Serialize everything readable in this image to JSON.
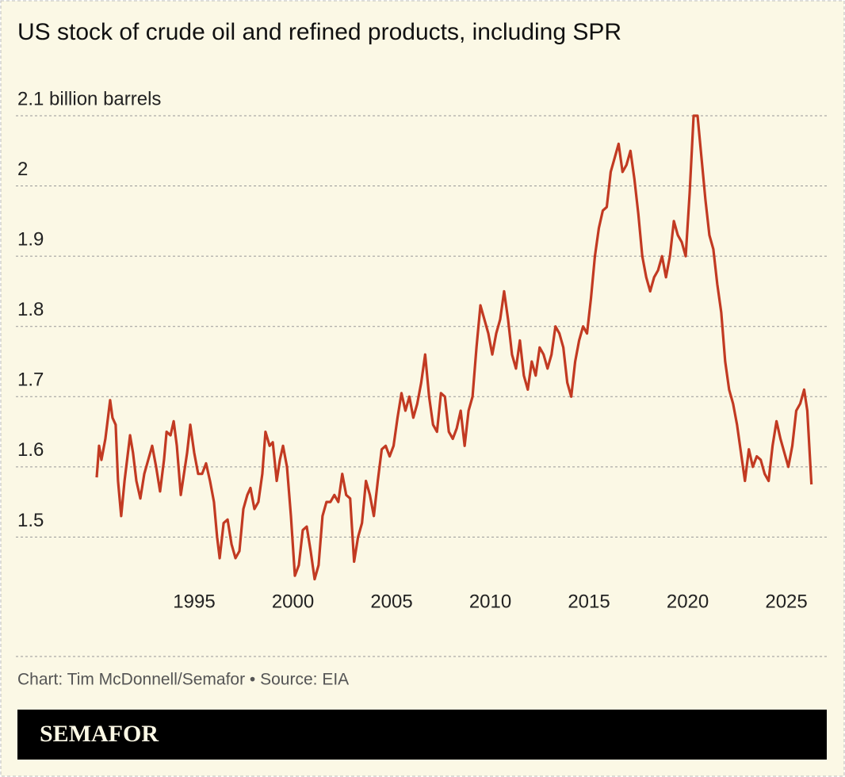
{
  "chart_data": {
    "type": "line",
    "title": "US stock of crude oil and refined products, including SPR",
    "source": "Chart: Tim McDonnell/Semafor • Source: EIA",
    "brand": "SEMAFOR",
    "xlim": [
      1990,
      2026.5
    ],
    "xticks": [
      1995,
      2000,
      2005,
      2010,
      2015,
      2020,
      2025
    ],
    "ylim": [
      1.4,
      2.15
    ],
    "yticks": [
      1.5,
      1.6,
      1.7,
      1.8,
      1.9,
      2,
      {
        "value": 2.1,
        "label": "2.1 billion barrels"
      }
    ],
    "grid": true,
    "x": [
      1990.06,
      1990.18,
      1990.3,
      1990.5,
      1990.74,
      1990.86,
      1991.02,
      1991.14,
      1991.3,
      1991.47,
      1991.6,
      1991.75,
      1991.9,
      1992.07,
      1992.27,
      1992.47,
      1992.67,
      1992.87,
      1993.07,
      1993.27,
      1993.47,
      1993.6,
      1993.8,
      1993.96,
      1994.12,
      1994.32,
      1994.48,
      1994.64,
      1994.8,
      1995.0,
      1995.2,
      1995.4,
      1995.6,
      1995.8,
      1996.0,
      1996.16,
      1996.29,
      1996.49,
      1996.69,
      1996.89,
      1997.09,
      1997.29,
      1997.49,
      1997.69,
      1997.85,
      1998.05,
      1998.25,
      1998.45,
      1998.61,
      1998.82,
      1998.98,
      1999.18,
      1999.34,
      1999.5,
      1999.7,
      1999.9,
      2000.1,
      2000.3,
      2000.5,
      2000.7,
      2000.9,
      2001.1,
      2001.3,
      2001.5,
      2001.7,
      2001.9,
      2002.1,
      2002.3,
      2002.5,
      2002.7,
      2002.9,
      2003.1,
      2003.3,
      2003.5,
      2003.7,
      2003.9,
      2004.1,
      2004.3,
      2004.5,
      2004.7,
      2004.9,
      2005.1,
      2005.3,
      2005.5,
      2005.7,
      2005.9,
      2006.1,
      2006.3,
      2006.5,
      2006.7,
      2006.9,
      2007.1,
      2007.3,
      2007.5,
      2007.7,
      2007.9,
      2008.1,
      2008.3,
      2008.5,
      2008.7,
      2008.9,
      2009.1,
      2009.3,
      2009.5,
      2009.7,
      2009.9,
      2010.1,
      2010.3,
      2010.5,
      2010.7,
      2010.9,
      2011.1,
      2011.3,
      2011.5,
      2011.7,
      2011.9,
      2012.1,
      2012.3,
      2012.5,
      2012.7,
      2012.9,
      2013.1,
      2013.3,
      2013.5,
      2013.7,
      2013.9,
      2014.1,
      2014.3,
      2014.5,
      2014.7,
      2014.9,
      2015.1,
      2015.3,
      2015.5,
      2015.7,
      2015.9,
      2016.1,
      2016.3,
      2016.5,
      2016.7,
      2016.9,
      2017.1,
      2017.3,
      2017.5,
      2017.7,
      2017.9,
      2018.1,
      2018.3,
      2018.5,
      2018.7,
      2018.9,
      2019.1,
      2019.3,
      2019.5,
      2019.7,
      2019.9,
      2020.1,
      2020.3,
      2020.5,
      2020.7,
      2020.9,
      2021.1,
      2021.3,
      2021.5,
      2021.7,
      2021.9,
      2022.1,
      2022.3,
      2022.5,
      2022.7,
      2022.9,
      2023.1,
      2023.3,
      2023.5,
      2023.7,
      2023.9,
      2024.1,
      2024.3,
      2024.5,
      2024.7,
      2024.9,
      2025.1,
      2025.3,
      2025.5,
      2025.7,
      2025.9,
      2026.06,
      2026.27
    ],
    "series": [
      {
        "color": "#c23a22",
        "values": [
          1.585,
          1.63,
          1.61,
          1.64,
          1.695,
          1.67,
          1.66,
          1.58,
          1.53,
          1.58,
          1.61,
          1.645,
          1.62,
          1.58,
          1.555,
          1.59,
          1.61,
          1.63,
          1.6,
          1.565,
          1.61,
          1.65,
          1.645,
          1.665,
          1.63,
          1.56,
          1.59,
          1.62,
          1.66,
          1.62,
          1.59,
          1.59,
          1.605,
          1.58,
          1.55,
          1.5,
          1.47,
          1.52,
          1.525,
          1.49,
          1.47,
          1.48,
          1.54,
          1.56,
          1.57,
          1.54,
          1.55,
          1.59,
          1.65,
          1.63,
          1.635,
          1.58,
          1.61,
          1.63,
          1.6,
          1.53,
          1.445,
          1.46,
          1.51,
          1.515,
          1.48,
          1.44,
          1.46,
          1.53,
          1.55,
          1.55,
          1.56,
          1.55,
          1.59,
          1.56,
          1.555,
          1.465,
          1.5,
          1.52,
          1.58,
          1.56,
          1.53,
          1.58,
          1.625,
          1.63,
          1.615,
          1.63,
          1.67,
          1.705,
          1.68,
          1.7,
          1.67,
          1.69,
          1.72,
          1.76,
          1.7,
          1.66,
          1.65,
          1.705,
          1.7,
          1.65,
          1.64,
          1.655,
          1.68,
          1.63,
          1.68,
          1.7,
          1.77,
          1.83,
          1.81,
          1.79,
          1.76,
          1.79,
          1.81,
          1.85,
          1.81,
          1.76,
          1.74,
          1.78,
          1.73,
          1.71,
          1.75,
          1.73,
          1.77,
          1.76,
          1.74,
          1.76,
          1.8,
          1.79,
          1.77,
          1.72,
          1.7,
          1.75,
          1.78,
          1.8,
          1.79,
          1.84,
          1.9,
          1.94,
          1.965,
          1.97,
          2.02,
          2.04,
          2.06,
          2.02,
          2.03,
          2.05,
          2.01,
          1.96,
          1.9,
          1.87,
          1.85,
          1.87,
          1.88,
          1.9,
          1.87,
          1.9,
          1.95,
          1.93,
          1.92,
          1.9,
          1.99,
          2.1,
          2.1,
          2.04,
          1.98,
          1.93,
          1.91,
          1.86,
          1.82,
          1.75,
          1.71,
          1.69,
          1.66,
          1.62,
          1.58,
          1.625,
          1.6,
          1.615,
          1.61,
          1.59,
          1.58,
          1.63,
          1.665,
          1.64,
          1.62,
          1.6,
          1.63,
          1.68,
          1.69,
          1.71,
          1.68,
          1.575
        ]
      }
    ]
  }
}
